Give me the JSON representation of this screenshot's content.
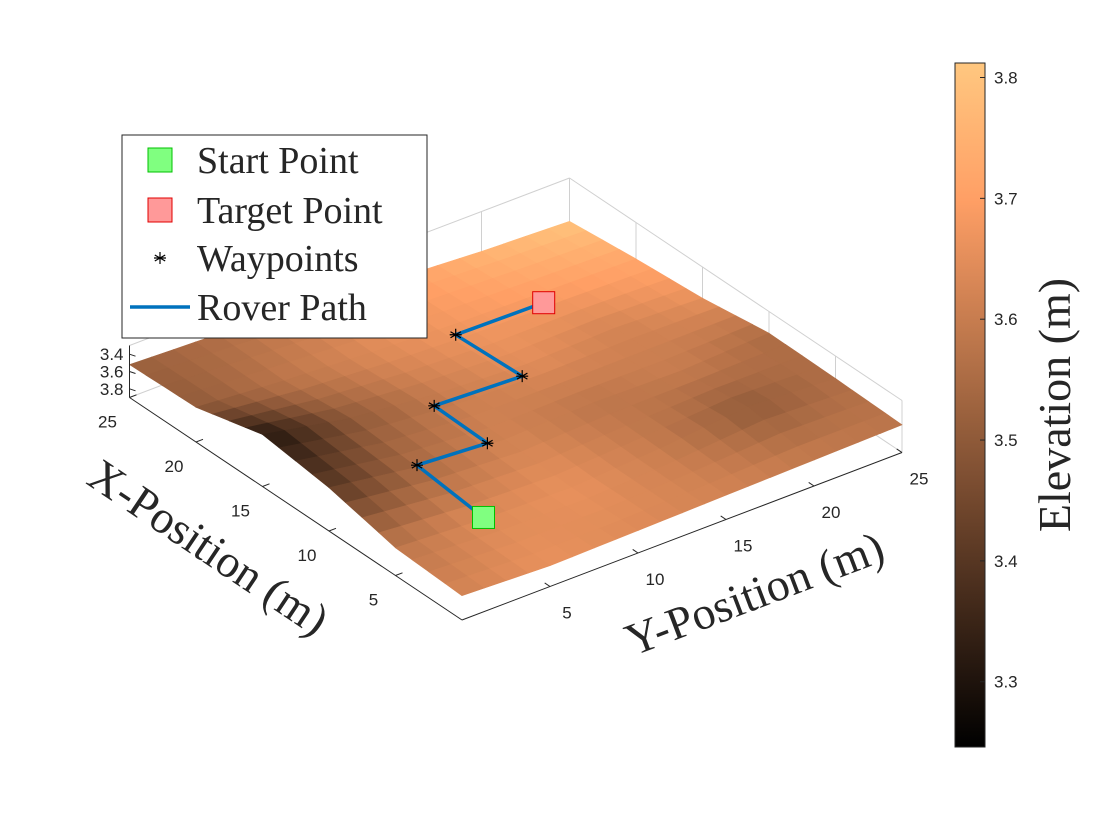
{
  "chart_data": {
    "type": "surface3d",
    "xlabel": "X-Position (m)",
    "ylabel": "Y-Position (m)",
    "xlim": [
      0,
      25
    ],
    "xticks": [
      5,
      10,
      15,
      20,
      25
    ],
    "ylim": [
      0,
      25
    ],
    "yticks": [
      5,
      10,
      15,
      20,
      25
    ],
    "zlim": [
      3.3,
      3.9
    ],
    "zticks": [
      3.4,
      3.6,
      3.8
    ],
    "z_reversed": true,
    "grid_x": [
      0,
      5,
      10,
      15,
      20,
      25
    ],
    "grid_y": [
      0,
      5,
      10,
      15,
      20,
      25
    ],
    "elevation": [
      [
        3.62,
        3.66,
        3.64,
        3.62,
        3.6,
        3.58
      ],
      [
        3.58,
        3.64,
        3.66,
        3.6,
        3.5,
        3.56
      ],
      [
        3.4,
        3.55,
        3.62,
        3.58,
        3.6,
        3.55
      ],
      [
        3.3,
        3.5,
        3.6,
        3.65,
        3.62,
        3.66
      ],
      [
        3.5,
        3.58,
        3.64,
        3.68,
        3.7,
        3.72
      ],
      [
        3.52,
        3.56,
        3.62,
        3.7,
        3.76,
        3.8
      ]
    ],
    "colormap": "copper",
    "clim": [
      3.246,
      3.812
    ],
    "cticks": [
      3.3,
      3.4,
      3.5,
      3.6,
      3.7,
      3.8
    ],
    "colorbar_label": "Elevation (m)",
    "legend": "northwest",
    "start": {
      "name": "Start Point",
      "color": "#80ff80",
      "edge": "#00c000",
      "x": 5,
      "y": 5
    },
    "target": {
      "name": "Target Point",
      "color": "#ff9999",
      "edge": "#e00000",
      "x": 19,
      "y": 19
    },
    "waypoints": {
      "name": "Waypoints",
      "color": "#000000",
      "x": [
        10,
        10,
        14,
        14,
        19
      ],
      "y": [
        5,
        9,
        9,
        14,
        14
      ]
    },
    "path": {
      "name": "Rover Path",
      "color": "#0072bd",
      "x": [
        5,
        10,
        10,
        14,
        14,
        19,
        19
      ],
      "y": [
        5,
        5,
        9,
        9,
        14,
        14,
        19
      ]
    }
  }
}
